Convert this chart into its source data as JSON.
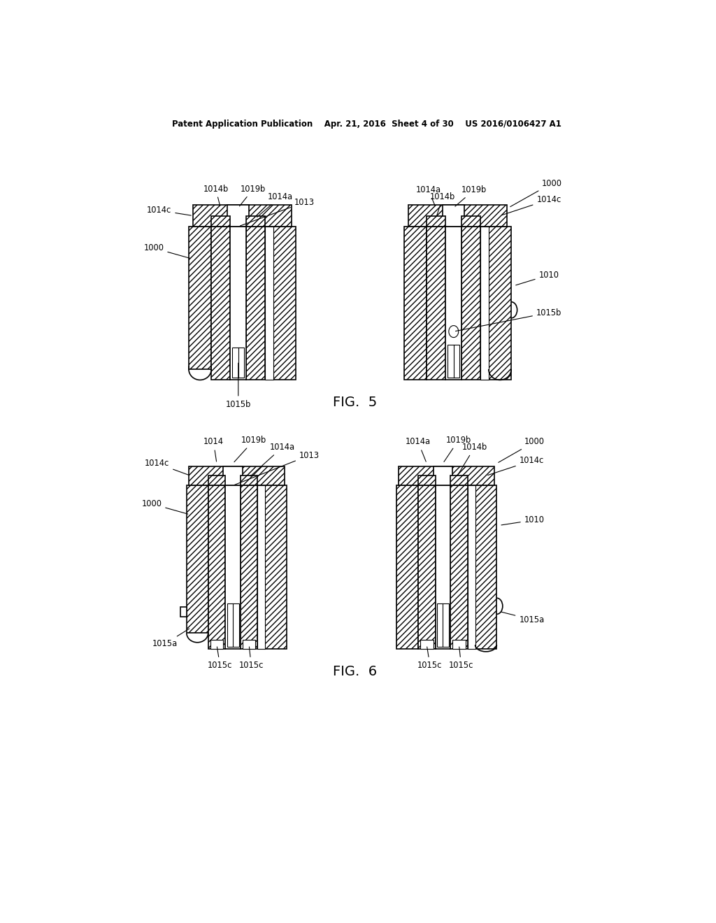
{
  "bg_color": "#ffffff",
  "lc": "#000000",
  "header": "Patent Application Publication    Apr. 21, 2016  Sheet 4 of 30    US 2016/0106427 A1",
  "fig5_label": "FIG.  5",
  "fig6_label": "FIG.  6"
}
